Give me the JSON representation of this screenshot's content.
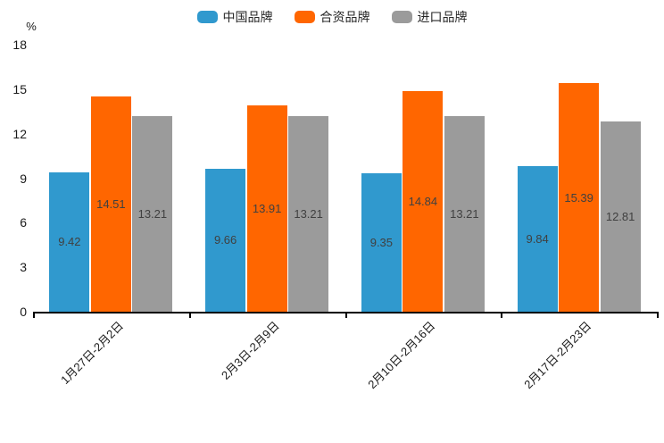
{
  "chart_data": {
    "type": "bar",
    "title": "",
    "ylabel": "%",
    "xlabel": "",
    "categories": [
      "1月27日-2月2日",
      "2月3日-2月9日",
      "2月10日-2月16日",
      "2月17日-2月23日"
    ],
    "series": [
      {
        "name": "中国品牌",
        "color": "#3099ce",
        "values": [
          9.42,
          9.66,
          9.35,
          9.84
        ]
      },
      {
        "name": "合资品牌",
        "color": "#ff6600",
        "values": [
          14.51,
          13.91,
          14.84,
          15.39
        ]
      },
      {
        "name": "进口品牌",
        "color": "#9b9b9b",
        "values": [
          13.21,
          13.21,
          13.21,
          12.81
        ]
      }
    ],
    "yticks": [
      0,
      3,
      6,
      9,
      12,
      15,
      18
    ],
    "ylim": [
      0,
      18
    ],
    "grid": false,
    "legend_position": "top",
    "value_label_color": "#404040",
    "axis_color": "#000000"
  }
}
